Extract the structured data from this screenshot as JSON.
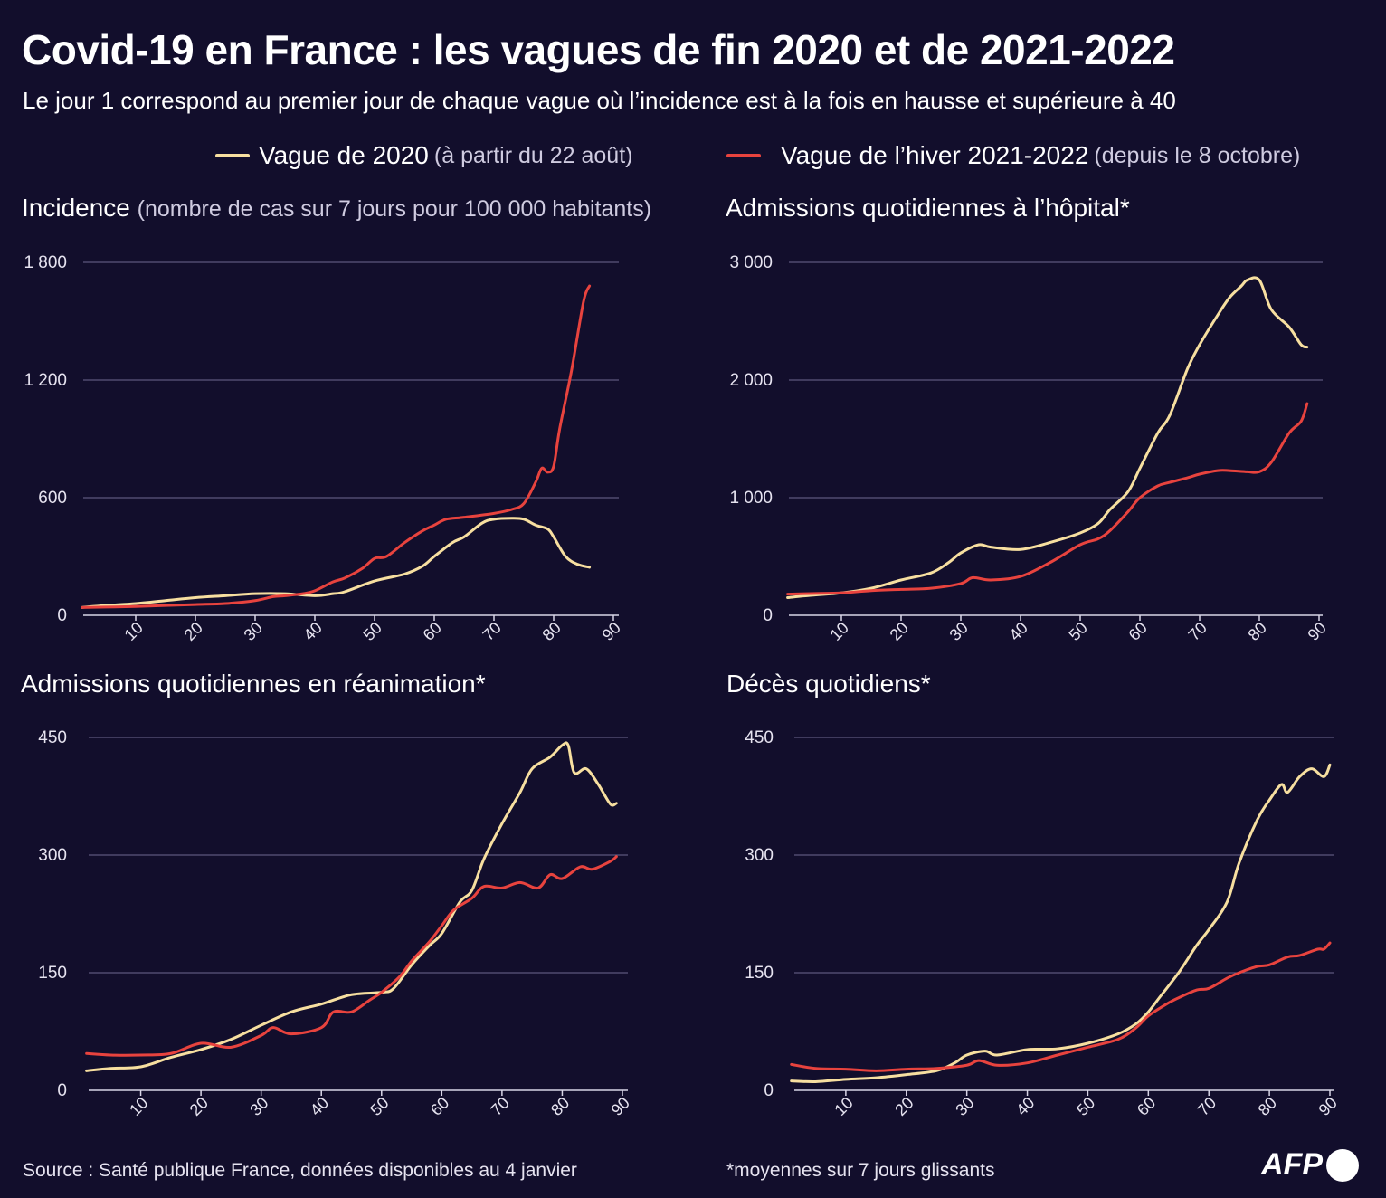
{
  "title": "Covid-19 en France : les vagues de fin 2020 et de 2021-2022",
  "subtitle": "Le jour 1 correspond au premier jour de chaque vague où l’incidence est à la fois en hausse et supérieure à 40",
  "legend": [
    {
      "label": "Vague de 2020",
      "detail": "(à partir du 22 août)",
      "color": "#f7dfa0"
    },
    {
      "label": "Vague de l’hiver 2021-2022",
      "detail": "(depuis le 8 octobre)",
      "color": "#e8433e"
    }
  ],
  "source": "Source : Santé publique France, données disponibles au 4 janvier",
  "note": "*moyennes sur 7 jours glissants",
  "logo": "AFP",
  "chart_data": [
    {
      "type": "line",
      "title": "Incidence",
      "title_detail": "(nombre de cas sur 7 jours pour 100 000 habitants)",
      "xlabel": "",
      "ylabel": "",
      "xlim": [
        0,
        90
      ],
      "ylim": [
        0,
        1800
      ],
      "xticks": [
        10,
        20,
        30,
        40,
        50,
        60,
        70,
        80,
        90
      ],
      "yticks": [
        0,
        600,
        1200,
        1800
      ],
      "ytick_labels": [
        "0",
        "600",
        "1 200",
        "1 800"
      ],
      "grid": true,
      "series": [
        {
          "name": "Vague de 2020",
          "x": [
            1,
            5,
            10,
            15,
            20,
            25,
            30,
            35,
            40,
            43,
            45,
            50,
            55,
            58,
            60,
            63,
            65,
            68,
            70,
            73,
            75,
            77,
            79,
            80,
            82,
            84,
            86
          ],
          "y": [
            40,
            50,
            60,
            75,
            90,
            100,
            110,
            110,
            100,
            110,
            120,
            175,
            210,
            250,
            300,
            370,
            400,
            470,
            490,
            495,
            490,
            460,
            440,
            400,
            300,
            260,
            245
          ]
        },
        {
          "name": "Vague de l’hiver 2021-2022",
          "x": [
            1,
            5,
            10,
            15,
            20,
            25,
            30,
            33,
            35,
            38,
            40,
            43,
            45,
            48,
            50,
            52,
            55,
            58,
            60,
            62,
            65,
            70,
            73,
            75,
            77,
            78,
            79,
            80,
            81,
            83,
            85,
            86
          ],
          "y": [
            40,
            42,
            45,
            50,
            55,
            60,
            75,
            95,
            100,
            110,
            125,
            170,
            190,
            240,
            290,
            300,
            370,
            430,
            460,
            490,
            500,
            520,
            540,
            570,
            680,
            750,
            730,
            760,
            950,
            1250,
            1600,
            1680
          ]
        }
      ]
    },
    {
      "type": "line",
      "title": "Admissions quotidiennes à l’hôpital*",
      "title_detail": "",
      "xlim": [
        0,
        90
      ],
      "ylim": [
        0,
        3000
      ],
      "xticks": [
        10,
        20,
        30,
        40,
        50,
        60,
        70,
        80,
        90
      ],
      "yticks": [
        0,
        1000,
        2000,
        3000
      ],
      "ytick_labels": [
        "0",
        "1 000",
        "2 000",
        "3 000"
      ],
      "grid": true,
      "series": [
        {
          "name": "Vague de 2020",
          "x": [
            1,
            5,
            10,
            15,
            20,
            25,
            28,
            30,
            33,
            35,
            40,
            45,
            50,
            53,
            55,
            58,
            60,
            63,
            65,
            68,
            70,
            73,
            75,
            77,
            78,
            80,
            82,
            85,
            87,
            88
          ],
          "y": [
            150,
            170,
            190,
            230,
            300,
            360,
            450,
            530,
            600,
            580,
            560,
            620,
            700,
            780,
            900,
            1050,
            1250,
            1550,
            1700,
            2100,
            2300,
            2550,
            2700,
            2800,
            2850,
            2850,
            2600,
            2450,
            2300,
            2280
          ]
        },
        {
          "name": "Vague de l’hiver 2021-2022",
          "x": [
            1,
            5,
            10,
            15,
            20,
            25,
            30,
            32,
            35,
            40,
            45,
            50,
            53,
            55,
            58,
            60,
            63,
            65,
            68,
            70,
            73,
            75,
            78,
            80,
            82,
            85,
            87,
            88
          ],
          "y": [
            180,
            185,
            190,
            210,
            220,
            230,
            270,
            320,
            300,
            330,
            450,
            600,
            650,
            720,
            880,
            1000,
            1100,
            1130,
            1170,
            1200,
            1230,
            1230,
            1220,
            1220,
            1300,
            1550,
            1650,
            1800
          ]
        }
      ]
    },
    {
      "type": "line",
      "title": "Admissions quotidiennes en réanimation*",
      "title_detail": "",
      "xlim": [
        0,
        90
      ],
      "ylim": [
        0,
        450
      ],
      "xticks": [
        10,
        20,
        30,
        40,
        50,
        60,
        70,
        80,
        90
      ],
      "yticks": [
        0,
        150,
        300,
        450
      ],
      "ytick_labels": [
        "0",
        "150",
        "300",
        "450"
      ],
      "grid": true,
      "series": [
        {
          "name": "Vague de 2020",
          "x": [
            1,
            5,
            10,
            15,
            20,
            25,
            30,
            35,
            40,
            45,
            50,
            52,
            55,
            58,
            60,
            63,
            65,
            67,
            70,
            73,
            75,
            78,
            80,
            81,
            82,
            84,
            86,
            88,
            89
          ],
          "y": [
            25,
            28,
            30,
            42,
            52,
            65,
            83,
            100,
            110,
            122,
            125,
            130,
            160,
            185,
            200,
            240,
            255,
            295,
            340,
            380,
            410,
            425,
            440,
            440,
            405,
            410,
            390,
            365,
            366
          ]
        },
        {
          "name": "Vague de l’hiver 2021-2022",
          "x": [
            1,
            5,
            10,
            15,
            20,
            25,
            30,
            32,
            35,
            40,
            42,
            45,
            48,
            50,
            53,
            55,
            58,
            60,
            62,
            65,
            67,
            70,
            73,
            76,
            78,
            80,
            83,
            85,
            88,
            89
          ],
          "y": [
            47,
            45,
            45,
            47,
            60,
            55,
            70,
            80,
            72,
            80,
            100,
            100,
            115,
            125,
            145,
            165,
            190,
            210,
            230,
            245,
            260,
            258,
            265,
            258,
            275,
            270,
            285,
            282,
            292,
            298
          ]
        }
      ]
    },
    {
      "type": "line",
      "title": "Décès quotidiens*",
      "title_detail": "",
      "xlim": [
        0,
        90
      ],
      "ylim": [
        0,
        450
      ],
      "xticks": [
        10,
        20,
        30,
        40,
        50,
        60,
        70,
        80,
        90
      ],
      "yticks": [
        0,
        150,
        300,
        450
      ],
      "ytick_labels": [
        "0",
        "150",
        "300",
        "450"
      ],
      "grid": true,
      "series": [
        {
          "name": "Vague de 2020",
          "x": [
            1,
            5,
            10,
            15,
            20,
            25,
            28,
            30,
            33,
            35,
            40,
            45,
            50,
            55,
            58,
            60,
            62,
            65,
            68,
            70,
            73,
            75,
            78,
            80,
            82,
            83,
            85,
            87,
            89,
            90
          ],
          "y": [
            12,
            11,
            14,
            16,
            20,
            25,
            35,
            45,
            50,
            45,
            52,
            53,
            60,
            72,
            85,
            100,
            120,
            150,
            185,
            205,
            240,
            290,
            345,
            370,
            390,
            380,
            400,
            410,
            400,
            415
          ]
        },
        {
          "name": "Vague de l’hiver 2021-2022",
          "x": [
            1,
            5,
            10,
            15,
            20,
            25,
            30,
            32,
            35,
            40,
            45,
            50,
            55,
            58,
            60,
            63,
            65,
            68,
            70,
            73,
            75,
            78,
            80,
            83,
            85,
            88,
            89,
            90
          ],
          "y": [
            33,
            28,
            27,
            25,
            27,
            28,
            32,
            38,
            32,
            35,
            45,
            55,
            65,
            80,
            95,
            110,
            118,
            128,
            130,
            143,
            150,
            158,
            160,
            170,
            172,
            180,
            180,
            188
          ]
        }
      ]
    }
  ]
}
